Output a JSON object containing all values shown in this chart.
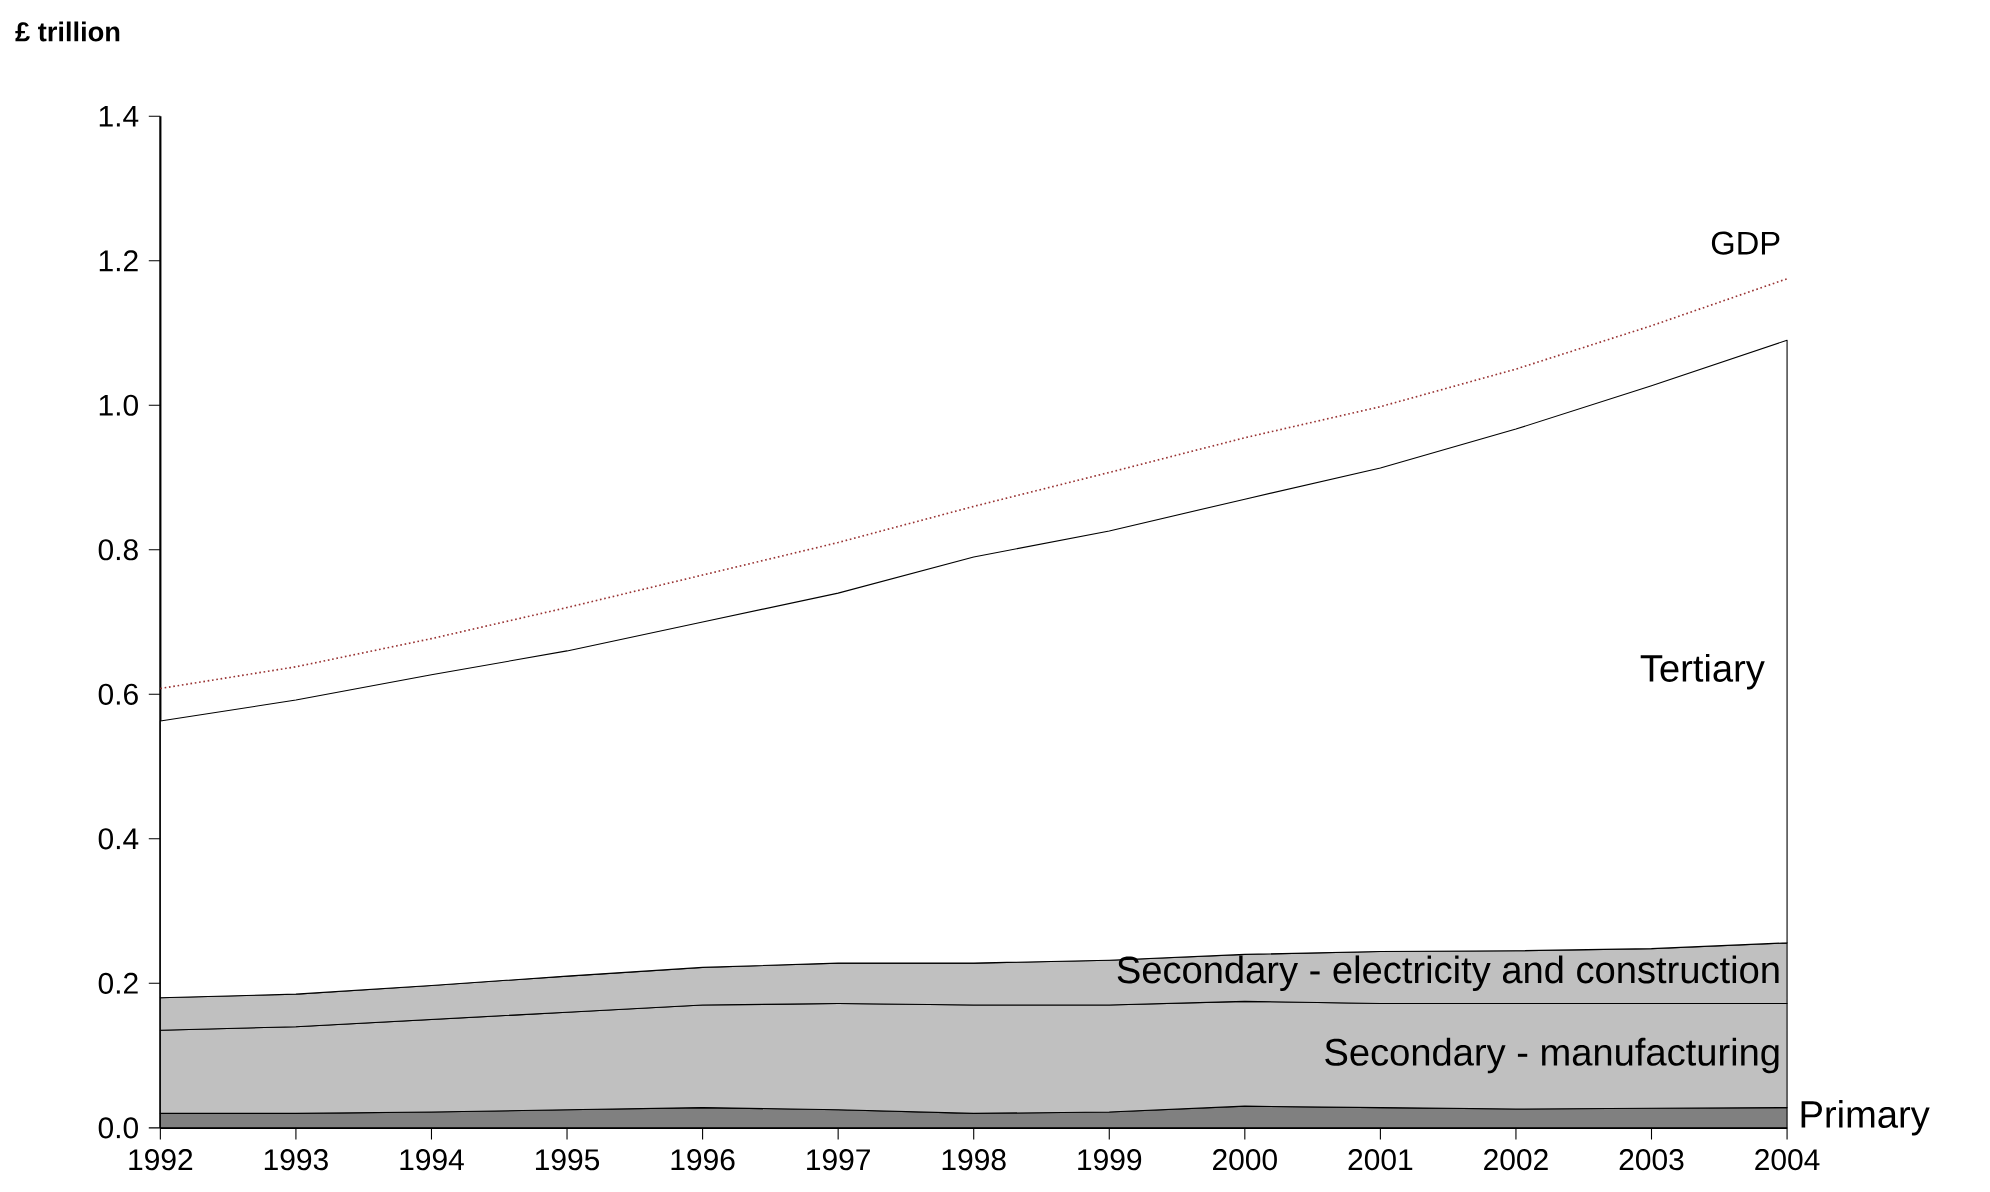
{
  "chart_data": {
    "type": "area",
    "stacked": true,
    "ylabel": "£ trillion",
    "x": [
      1992,
      1993,
      1994,
      1995,
      1996,
      1997,
      1998,
      1999,
      2000,
      2001,
      2002,
      2003,
      2004
    ],
    "xlim": [
      1992,
      2004
    ],
    "xticks": [
      1992,
      1993,
      1994,
      1995,
      1996,
      1997,
      1998,
      1999,
      2000,
      2001,
      2002,
      2003,
      2004
    ],
    "ylim": [
      0,
      1.4
    ],
    "yticks": [
      {
        "value": 0,
        "label": "0.0"
      },
      {
        "value": 0.2,
        "label": "0.2"
      },
      {
        "value": 0.4,
        "label": "0.4"
      },
      {
        "value": 0.6,
        "label": "0.6"
      },
      {
        "value": 0.8,
        "label": "0.8"
      },
      {
        "value": 1.0,
        "label": "1.0"
      },
      {
        "value": 1.2,
        "label": "1.2"
      },
      {
        "value": 1.4,
        "label": "1.4"
      }
    ],
    "series": [
      {
        "name": "Primary",
        "color": "#808080",
        "values": [
          0.02,
          0.02,
          0.022,
          0.025,
          0.028,
          0.025,
          0.02,
          0.022,
          0.03,
          0.028,
          0.026,
          0.027,
          0.028
        ]
      },
      {
        "name": "Secondary - manufacturing",
        "color": "#c0c0c0",
        "values": [
          0.115,
          0.12,
          0.128,
          0.135,
          0.142,
          0.147,
          0.15,
          0.148,
          0.145,
          0.144,
          0.146,
          0.145,
          0.144
        ]
      },
      {
        "name": "Secondary - electricity and construction",
        "color": "#c0c0c0",
        "values": [
          0.045,
          0.045,
          0.047,
          0.05,
          0.052,
          0.056,
          0.058,
          0.062,
          0.065,
          0.072,
          0.073,
          0.076,
          0.084
        ]
      },
      {
        "name": "Tertiary",
        "color": "#ffffff",
        "values": [
          0.383,
          0.407,
          0.43,
          0.45,
          0.478,
          0.512,
          0.562,
          0.594,
          0.63,
          0.669,
          0.722,
          0.779,
          0.834
        ]
      },
      {
        "name": "GDP",
        "type": "line",
        "color": "#993333",
        "line_style": "dotted",
        "values": [
          0.608,
          0.638,
          0.677,
          0.72,
          0.765,
          0.81,
          0.86,
          0.907,
          0.955,
          0.998,
          1.05,
          1.11,
          1.175
        ]
      }
    ]
  }
}
